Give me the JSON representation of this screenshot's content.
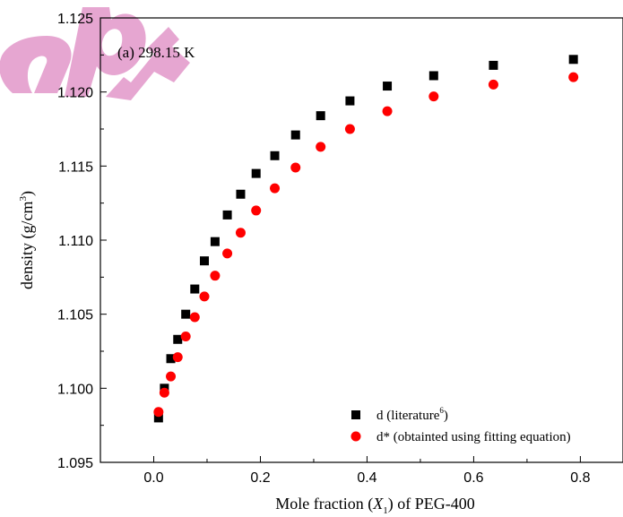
{
  "chart_data": {
    "type": "scatter",
    "annotation": "(a) 298.15 K",
    "xlabel": {
      "pre": "Mole fraction (",
      "var": "X",
      "sub": "1",
      "post": ") of PEG-400"
    },
    "ylabel": {
      "pre": "density (g/cm",
      "sup": "3",
      "post": ")"
    },
    "xlim": [
      -0.1,
      0.88
    ],
    "ylim": [
      1.095,
      1.125
    ],
    "x_ticks": [
      0.0,
      0.2,
      0.4,
      0.6,
      0.8
    ],
    "x_tick_labels": [
      "0.0",
      "0.2",
      "0.4",
      "0.6",
      "0.8"
    ],
    "y_ticks": [
      1.095,
      1.1,
      1.105,
      1.11,
      1.115,
      1.12,
      1.125
    ],
    "y_tick_labels": [
      "1.095",
      "1.100",
      "1.105",
      "1.110",
      "1.115",
      "1.120",
      "1.125"
    ],
    "legend_position": "bottom-right",
    "series": [
      {
        "name": "d (literature6)",
        "legend": {
          "pre": "d (literature",
          "sup": "6",
          "post": ")"
        },
        "marker": "square",
        "color": "#000000",
        "x": [
          0.009,
          0.02,
          0.032,
          0.045,
          0.06,
          0.077,
          0.095,
          0.115,
          0.138,
          0.163,
          0.192,
          0.227,
          0.266,
          0.313,
          0.368,
          0.438,
          0.525,
          0.637,
          0.787
        ],
        "y": [
          1.098,
          1.1,
          1.102,
          1.1033,
          1.105,
          1.1067,
          1.1086,
          1.1099,
          1.1117,
          1.1131,
          1.1145,
          1.1157,
          1.1171,
          1.1184,
          1.1194,
          1.1204,
          1.1211,
          1.1218,
          1.1222
        ]
      },
      {
        "name": "d* (obtainted using fitting equation)",
        "legend": {
          "pre": "d* (obtainted using fitting equation)",
          "sup": "",
          "post": ""
        },
        "marker": "circle",
        "color": "#ff0000",
        "x": [
          0.009,
          0.02,
          0.032,
          0.045,
          0.06,
          0.077,
          0.095,
          0.115,
          0.138,
          0.163,
          0.192,
          0.227,
          0.266,
          0.313,
          0.368,
          0.438,
          0.525,
          0.637,
          0.787
        ],
        "y": [
          1.0984,
          1.0997,
          1.1008,
          1.1021,
          1.1035,
          1.1048,
          1.1062,
          1.1076,
          1.1091,
          1.1105,
          1.112,
          1.1135,
          1.1149,
          1.1163,
          1.1175,
          1.1187,
          1.1197,
          1.1205,
          1.121
        ]
      }
    ]
  },
  "watermark_color": "#e6a6d1"
}
